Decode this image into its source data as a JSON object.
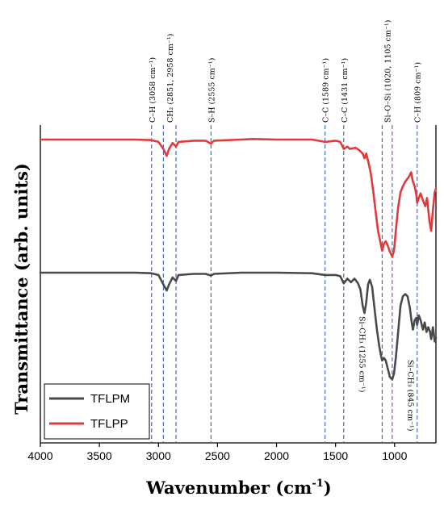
{
  "chart_data": {
    "type": "line",
    "title": "",
    "xlabel": "Wavenumber (cm",
    "xlabel_sup": "-1",
    "xlabel_close": ")",
    "ylabel": "Transmittance (arb. units)",
    "xlim": [
      4000,
      650
    ],
    "x_reversed": true,
    "x_ticks": [
      4000,
      3500,
      3000,
      2500,
      2000,
      1500,
      1000
    ],
    "y_ticks_shown": false,
    "grid": false,
    "legend_position": "bottom-left",
    "series": [
      {
        "name": "TFLPP",
        "color": "#e03a3e",
        "baseline": 0.0,
        "points": [
          [
            4000,
            0.0
          ],
          [
            3600,
            0.0
          ],
          [
            3200,
            0.0
          ],
          [
            3060,
            0.005
          ],
          [
            3000,
            0.02
          ],
          [
            2958,
            0.08
          ],
          [
            2930,
            0.14
          ],
          [
            2910,
            0.08
          ],
          [
            2880,
            0.03
          ],
          [
            2851,
            0.06
          ],
          [
            2830,
            0.02
          ],
          [
            2700,
            0.01
          ],
          [
            2600,
            0.01
          ],
          [
            2555,
            0.035
          ],
          [
            2530,
            0.01
          ],
          [
            2300,
            0.0
          ],
          [
            2200,
            -0.005
          ],
          [
            2000,
            0.0
          ],
          [
            1700,
            0.0
          ],
          [
            1589,
            0.02
          ],
          [
            1500,
            0.01
          ],
          [
            1460,
            0.02
          ],
          [
            1431,
            0.08
          ],
          [
            1400,
            0.06
          ],
          [
            1380,
            0.08
          ],
          [
            1330,
            0.07
          ],
          [
            1300,
            0.09
          ],
          [
            1270,
            0.12
          ],
          [
            1255,
            0.16
          ],
          [
            1240,
            0.12
          ],
          [
            1220,
            0.2
          ],
          [
            1200,
            0.3
          ],
          [
            1180,
            0.45
          ],
          [
            1160,
            0.62
          ],
          [
            1140,
            0.78
          ],
          [
            1120,
            0.88
          ],
          [
            1105,
            0.95
          ],
          [
            1090,
            0.89
          ],
          [
            1075,
            0.87
          ],
          [
            1060,
            0.9
          ],
          [
            1040,
            0.96
          ],
          [
            1020,
            1.0
          ],
          [
            1005,
            0.95
          ],
          [
            990,
            0.78
          ],
          [
            970,
            0.58
          ],
          [
            950,
            0.45
          ],
          [
            930,
            0.4
          ],
          [
            910,
            0.36
          ],
          [
            880,
            0.32
          ],
          [
            860,
            0.28
          ],
          [
            845,
            0.36
          ],
          [
            830,
            0.4
          ],
          [
            815,
            0.48
          ],
          [
            809,
            0.54
          ],
          [
            795,
            0.5
          ],
          [
            780,
            0.46
          ],
          [
            760,
            0.52
          ],
          [
            740,
            0.57
          ],
          [
            725,
            0.5
          ],
          [
            705,
            0.7
          ],
          [
            690,
            0.78
          ],
          [
            675,
            0.6
          ],
          [
            660,
            0.45
          ],
          [
            650,
            0.42
          ]
        ]
      },
      {
        "name": "TFLPM",
        "color": "#4a4a4a",
        "baseline": 0.0,
        "points": [
          [
            4000,
            0.0
          ],
          [
            3600,
            0.0
          ],
          [
            3200,
            0.0
          ],
          [
            3060,
            0.005
          ],
          [
            3000,
            0.02
          ],
          [
            2958,
            0.1
          ],
          [
            2930,
            0.15
          ],
          [
            2910,
            0.1
          ],
          [
            2880,
            0.04
          ],
          [
            2851,
            0.07
          ],
          [
            2830,
            0.02
          ],
          [
            2700,
            0.01
          ],
          [
            2600,
            0.01
          ],
          [
            2555,
            0.025
          ],
          [
            2530,
            0.01
          ],
          [
            2300,
            0.0
          ],
          [
            2000,
            0.0
          ],
          [
            1700,
            0.005
          ],
          [
            1589,
            0.02
          ],
          [
            1500,
            0.02
          ],
          [
            1460,
            0.03
          ],
          [
            1431,
            0.09
          ],
          [
            1400,
            0.05
          ],
          [
            1370,
            0.08
          ],
          [
            1340,
            0.05
          ],
          [
            1310,
            0.09
          ],
          [
            1290,
            0.14
          ],
          [
            1270,
            0.28
          ],
          [
            1255,
            0.34
          ],
          [
            1240,
            0.25
          ],
          [
            1225,
            0.1
          ],
          [
            1210,
            0.06
          ],
          [
            1190,
            0.12
          ],
          [
            1170,
            0.3
          ],
          [
            1150,
            0.48
          ],
          [
            1130,
            0.62
          ],
          [
            1115,
            0.7
          ],
          [
            1105,
            0.74
          ],
          [
            1090,
            0.72
          ],
          [
            1075,
            0.74
          ],
          [
            1060,
            0.8
          ],
          [
            1040,
            0.88
          ],
          [
            1020,
            0.9
          ],
          [
            1005,
            0.85
          ],
          [
            990,
            0.72
          ],
          [
            970,
            0.5
          ],
          [
            950,
            0.28
          ],
          [
            930,
            0.2
          ],
          [
            910,
            0.18
          ],
          [
            890,
            0.2
          ],
          [
            870,
            0.3
          ],
          [
            855,
            0.42
          ],
          [
            845,
            0.48
          ],
          [
            830,
            0.4
          ],
          [
            815,
            0.38
          ],
          [
            809,
            0.44
          ],
          [
            795,
            0.36
          ],
          [
            780,
            0.4
          ],
          [
            760,
            0.48
          ],
          [
            745,
            0.42
          ],
          [
            730,
            0.5
          ],
          [
            715,
            0.46
          ],
          [
            700,
            0.5
          ],
          [
            690,
            0.56
          ],
          [
            675,
            0.46
          ],
          [
            660,
            0.58
          ],
          [
            650,
            0.55
          ]
        ]
      }
    ],
    "reference_lines": [
      {
        "x": 3058,
        "label": "C–H (3058 cm⁻¹)"
      },
      {
        "x": 2958,
        "label": ""
      },
      {
        "x": 2851,
        "label": "CH₂ (2851, 2958 cm⁻¹)"
      },
      {
        "x": 2555,
        "label": "S–H (2555 cm⁻¹)"
      },
      {
        "x": 1589,
        "label": "C–C (1589 cm⁻¹)"
      },
      {
        "x": 1431,
        "label": "C–C (1431 cm⁻¹)"
      },
      {
        "x": 1105,
        "label": "Si–O–Si (1020, 1105 cm⁻¹)"
      },
      {
        "x": 1020,
        "label": ""
      },
      {
        "x": 809,
        "label": "C–H (809 cm⁻¹)"
      }
    ],
    "annotations": [
      {
        "text": "Si–CH₃ (1255 cm⁻¹)",
        "x": 1255
      },
      {
        "text": "Si–CH₃ (845 cm⁻¹)",
        "x": 845
      }
    ],
    "legend": [
      {
        "name": "TFLPM",
        "color": "#4a4a4a"
      },
      {
        "name": "TFLPP",
        "color": "#e03a3e"
      }
    ],
    "reference_line_color": "#3a6fd1"
  }
}
